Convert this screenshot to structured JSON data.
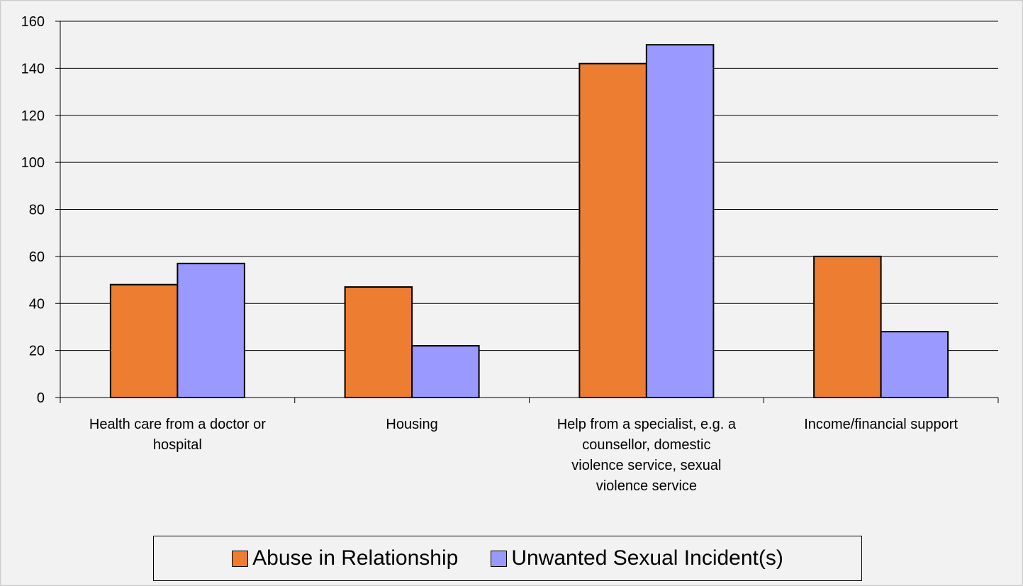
{
  "chart_data": {
    "type": "bar",
    "categories": [
      "Health care from a doctor or hospital",
      "Housing",
      "Help from a specialist, e.g. a counsellor, domestic violence service, sexual violence service",
      "Income/financial support"
    ],
    "category_lines": [
      [
        "Health care from a doctor or",
        "hospital"
      ],
      [
        "Housing"
      ],
      [
        "Help from a specialist, e.g. a",
        "counsellor, domestic",
        "violence service, sexual",
        "violence service"
      ],
      [
        "Income/financial support"
      ]
    ],
    "series": [
      {
        "name": "Abuse in Relationship",
        "color": "#ed7d31",
        "values": [
          48,
          47,
          142,
          60
        ]
      },
      {
        "name": "Unwanted Sexual Incident(s)",
        "color": "#9999ff",
        "values": [
          57,
          22,
          150,
          28
        ]
      }
    ],
    "yticks": [
      "0",
      "20",
      "40",
      "60",
      "80",
      "100",
      "120",
      "140",
      "160"
    ],
    "ylim": [
      0,
      160
    ],
    "grid": true,
    "legend_position": "bottom",
    "title": "",
    "xlabel": "",
    "ylabel": ""
  }
}
